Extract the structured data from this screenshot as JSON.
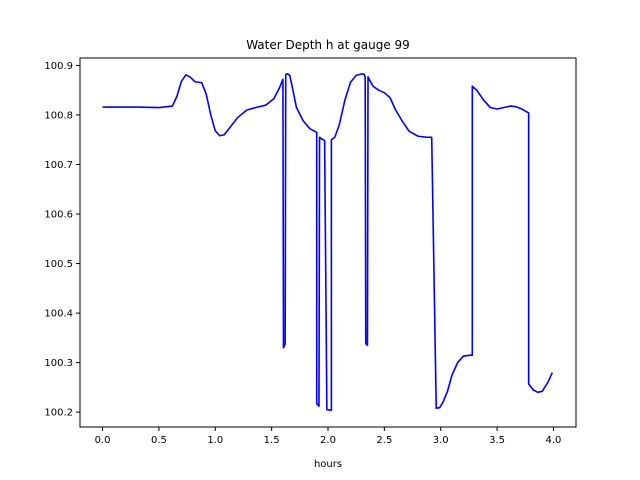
{
  "chart_data": {
    "type": "line",
    "title": "Water Depth h at gauge 99",
    "xlabel": "hours",
    "ylabel": "",
    "xlim": [
      -0.2,
      4.2
    ],
    "ylim": [
      100.17,
      100.915
    ],
    "xticks": [
      0.0,
      0.5,
      1.0,
      1.5,
      2.0,
      2.5,
      3.0,
      3.5,
      4.0
    ],
    "xtick_labels": [
      "0.0",
      "0.5",
      "1.0",
      "1.5",
      "2.0",
      "2.5",
      "3.0",
      "3.5",
      "4.0"
    ],
    "yticks": [
      100.2,
      100.3,
      100.4,
      100.5,
      100.6,
      100.7,
      100.8,
      100.9
    ],
    "ytick_labels": [
      "100.2",
      "100.3",
      "100.4",
      "100.5",
      "100.6",
      "100.7",
      "100.8",
      "100.9"
    ],
    "grid": false,
    "series": [
      {
        "color": "#0000ff",
        "x": [
          0.0,
          0.3,
          0.5,
          0.62,
          0.66,
          0.7,
          0.74,
          0.78,
          0.82,
          0.88,
          0.92,
          0.96,
          1.0,
          1.04,
          1.08,
          1.12,
          1.2,
          1.28,
          1.36,
          1.45,
          1.52,
          1.57,
          1.6,
          1.605,
          1.62,
          1.625,
          1.64,
          1.66,
          1.68,
          1.72,
          1.78,
          1.84,
          1.9,
          1.9,
          1.92,
          1.925,
          1.94,
          1.96,
          1.97,
          1.99,
          1.99,
          2.03,
          2.03,
          2.06,
          2.1,
          2.15,
          2.2,
          2.25,
          2.3,
          2.32,
          2.33,
          2.335,
          2.35,
          2.355,
          2.37,
          2.4,
          2.45,
          2.5,
          2.55,
          2.6,
          2.66,
          2.72,
          2.8,
          2.88,
          2.92,
          2.96,
          2.96,
          2.99,
          3.02,
          3.06,
          3.1,
          3.15,
          3.2,
          3.26,
          3.28,
          3.28,
          3.32,
          3.38,
          3.44,
          3.5,
          3.56,
          3.62,
          3.66,
          3.72,
          3.78,
          3.78,
          3.82,
          3.86,
          3.9,
          3.95,
          3.99
        ],
        "y": [
          100.816,
          100.816,
          100.815,
          100.818,
          100.838,
          100.868,
          100.881,
          100.876,
          100.867,
          100.865,
          100.842,
          100.8,
          100.768,
          100.758,
          100.76,
          100.772,
          100.795,
          100.81,
          100.815,
          100.82,
          100.833,
          100.855,
          100.872,
          100.33,
          100.338,
          100.882,
          100.883,
          100.88,
          100.86,
          100.815,
          100.788,
          100.772,
          100.765,
          100.217,
          100.212,
          100.755,
          100.752,
          100.75,
          100.748,
          100.205,
          100.205,
          100.204,
          100.75,
          100.755,
          100.78,
          100.83,
          100.866,
          100.88,
          100.883,
          100.882,
          100.876,
          100.338,
          100.335,
          100.877,
          100.87,
          100.858,
          100.85,
          100.845,
          100.835,
          100.81,
          100.787,
          100.767,
          100.757,
          100.755,
          100.755,
          100.208,
          100.208,
          100.209,
          100.22,
          100.242,
          100.275,
          100.3,
          100.313,
          100.315,
          100.315,
          100.858,
          100.85,
          100.83,
          100.815,
          100.812,
          100.815,
          100.818,
          100.817,
          100.812,
          100.804,
          100.257,
          100.245,
          100.24,
          100.242,
          100.26,
          100.28
        ]
      }
    ]
  }
}
